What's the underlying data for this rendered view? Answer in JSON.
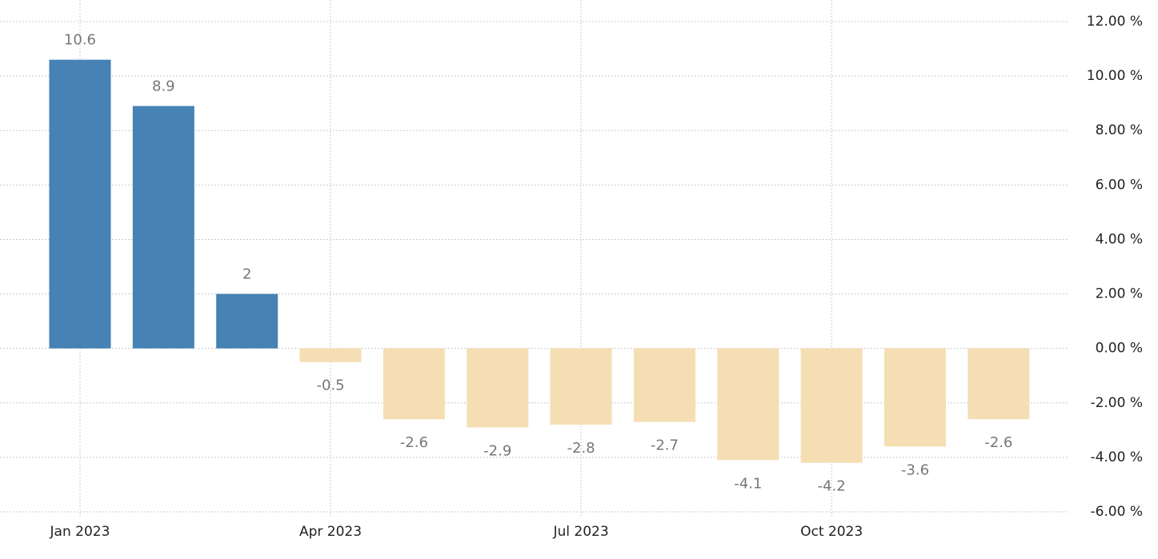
{
  "chart_data": {
    "type": "bar",
    "categories": [
      "Jan 2023",
      null,
      null,
      "Apr 2023",
      null,
      null,
      "Jul 2023",
      null,
      null,
      "Oct 2023",
      null,
      null
    ],
    "values": [
      10.6,
      8.9,
      2,
      -0.5,
      -2.6,
      -2.9,
      -2.8,
      -2.7,
      -4.1,
      -4.2,
      -3.6,
      -2.6
    ],
    "positive_color": "#4682b4",
    "negative_color": "#f5deb3",
    "ylim": [
      -6,
      12
    ],
    "yticks": [
      {
        "value": 12,
        "label": "12.00 %"
      },
      {
        "value": 10,
        "label": "10.00 %"
      },
      {
        "value": 8,
        "label": "8.00 %"
      },
      {
        "value": 6,
        "label": "6.00 %"
      },
      {
        "value": 4,
        "label": "4.00 %"
      },
      {
        "value": 2,
        "label": "2.00 %"
      },
      {
        "value": 0,
        "label": "0.00 %"
      },
      {
        "value": -2,
        "label": "-2.00 %"
      },
      {
        "value": -4,
        "label": "-4.00 %"
      },
      {
        "value": -6,
        "label": "-6.00 %"
      }
    ],
    "grid": true
  }
}
